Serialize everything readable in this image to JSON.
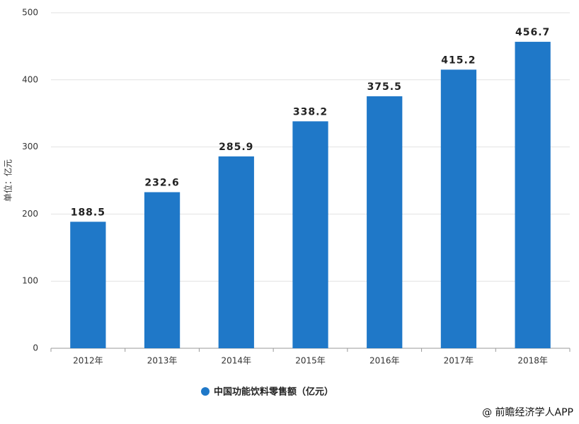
{
  "chart_data": {
    "type": "bar",
    "y_label": "单位：亿元",
    "categories": [
      "2012年",
      "2013年",
      "2014年",
      "2015年",
      "2016年",
      "2017年",
      "2018年"
    ],
    "series": [
      {
        "name": "中国功能饮料零售额（亿元）",
        "color": "#1f78c8",
        "values": [
          188.5,
          232.6,
          285.9,
          338.2,
          375.5,
          415.2,
          456.7
        ]
      }
    ],
    "ylim": [
      0,
      500
    ],
    "yticks": [
      0,
      100,
      200,
      300,
      400,
      500
    ],
    "grid": true,
    "data_labels": true,
    "legend": "bottom",
    "source": "@ 前瞻经济学人APP"
  }
}
